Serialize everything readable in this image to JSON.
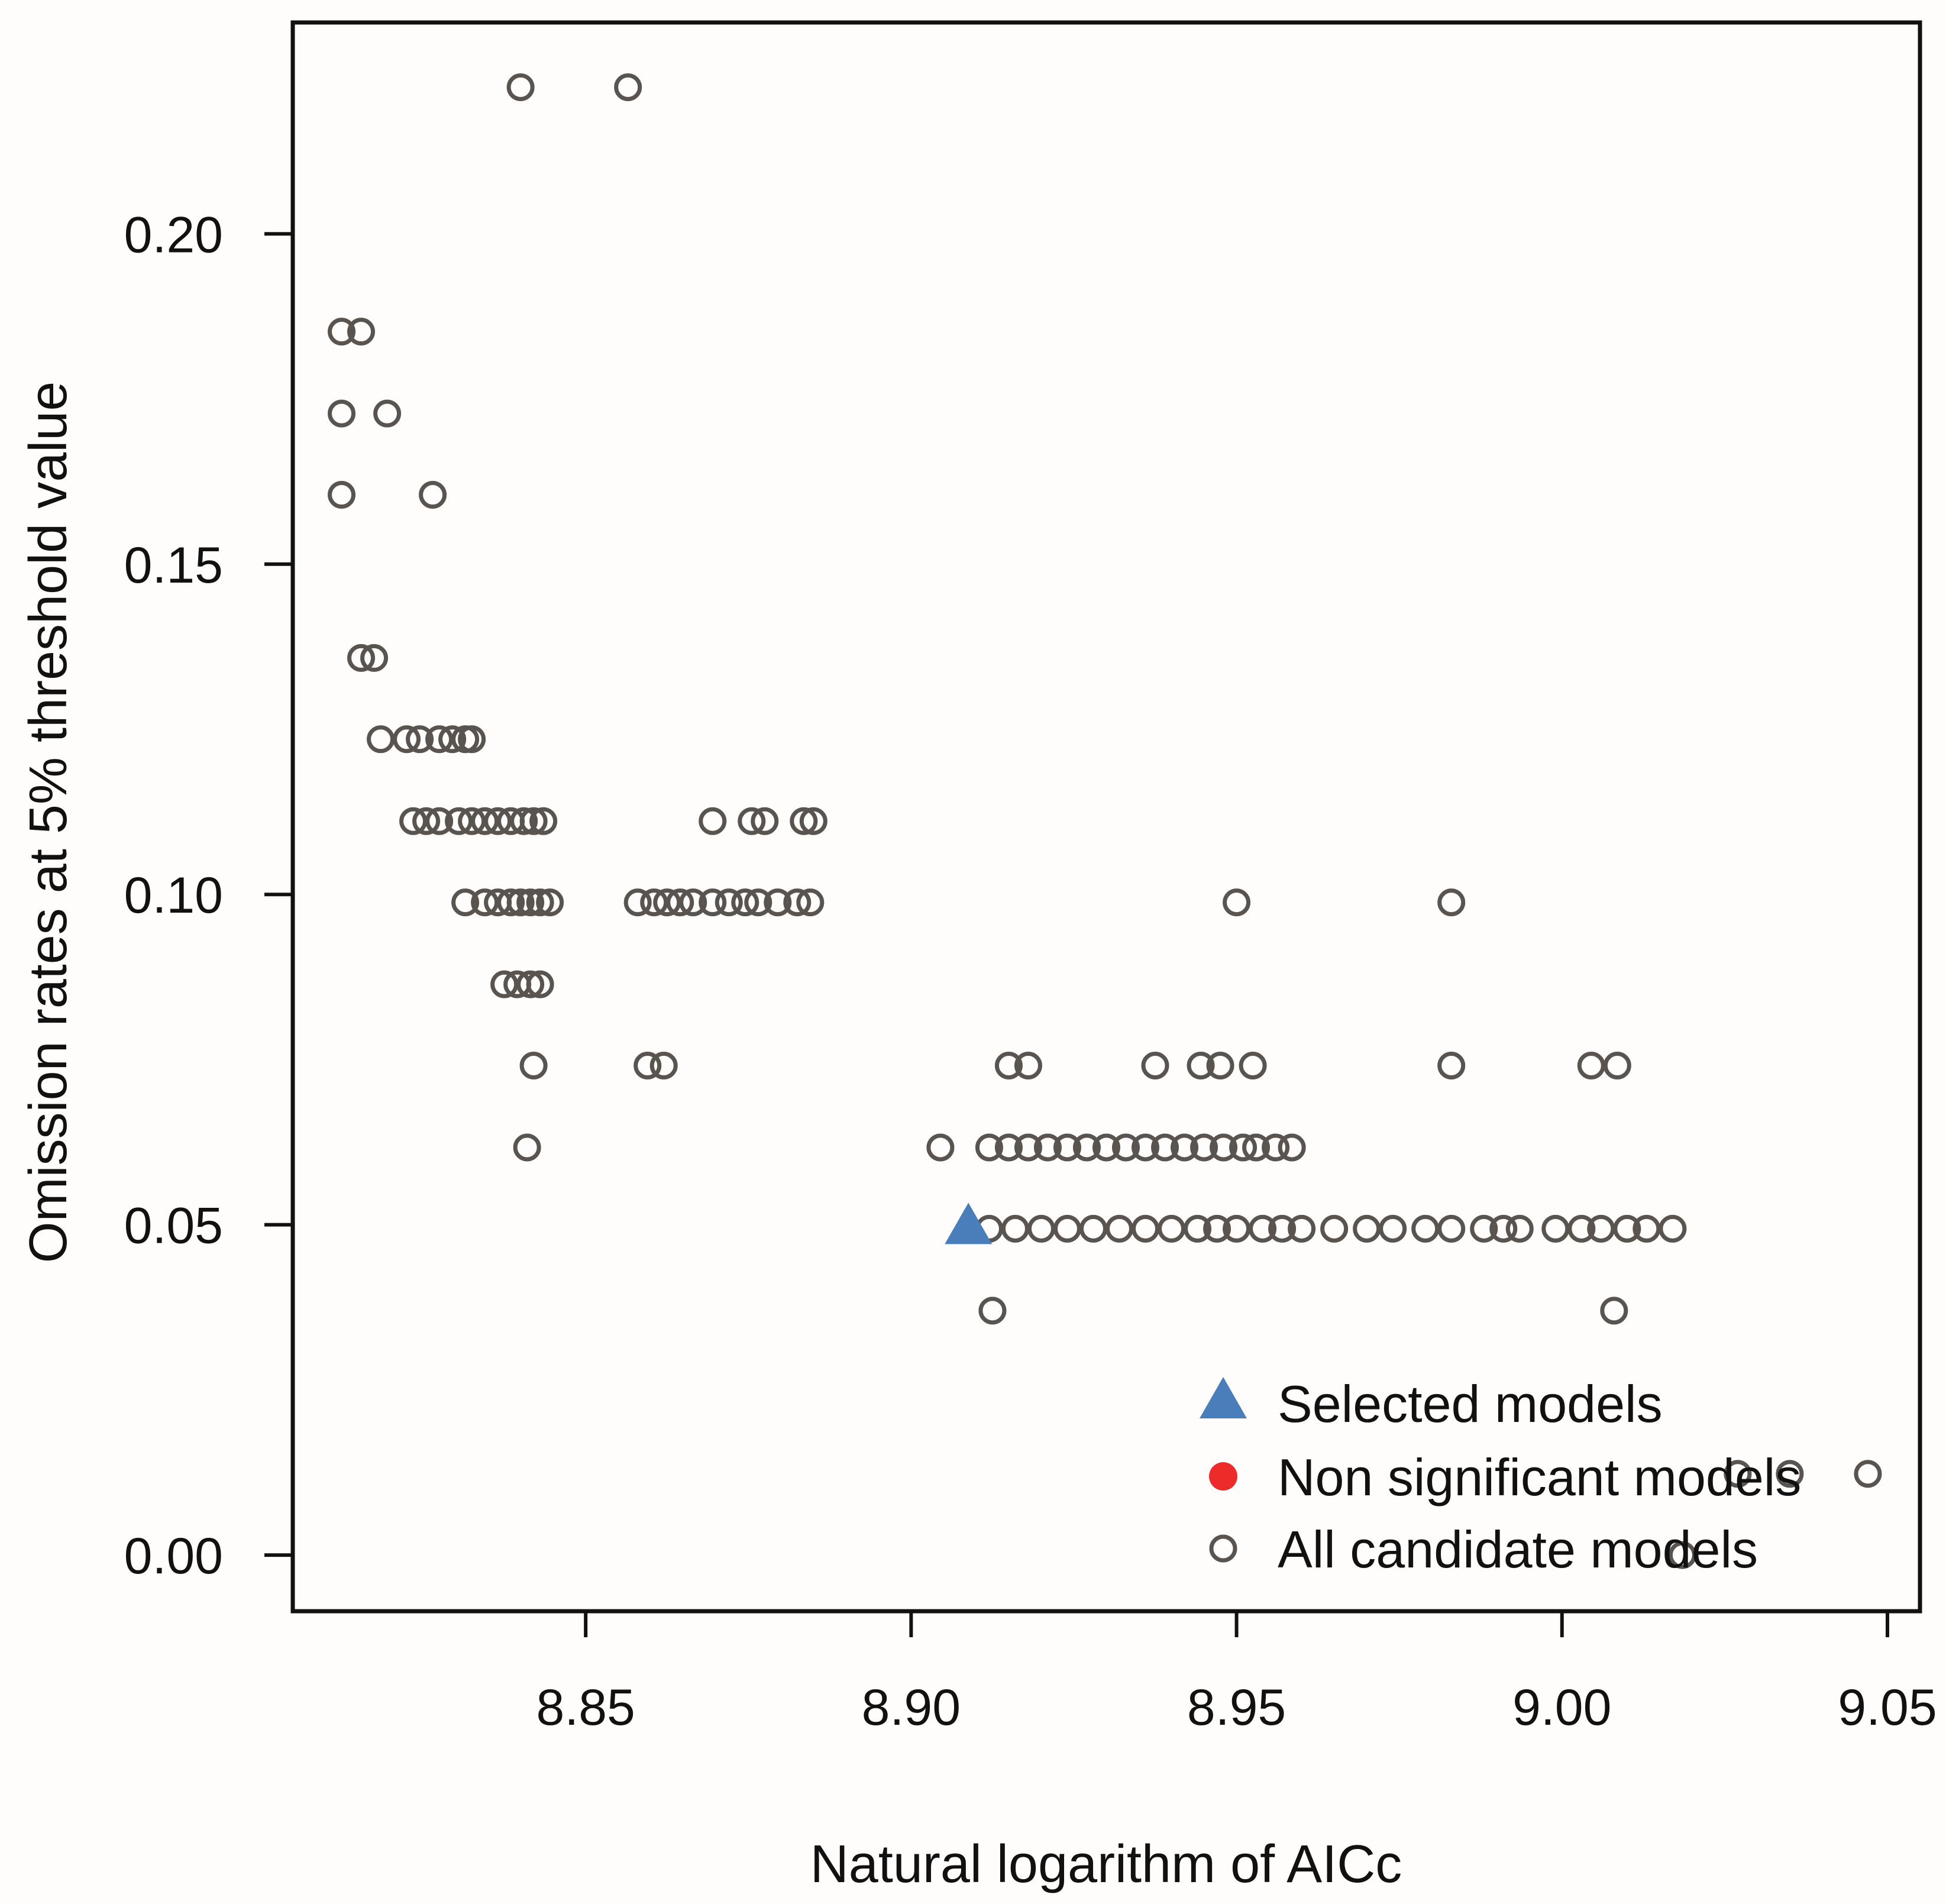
{
  "chart_data": {
    "type": "scatter",
    "xlabel": "Natural logarithm of AICc",
    "ylabel": "Omission rates at 5% threshold value",
    "xlim": [
      8.805,
      9.055
    ],
    "ylim": [
      -0.0085,
      0.232
    ],
    "x_ticks": [
      8.85,
      8.9,
      8.95,
      9.0,
      9.05
    ],
    "x_tick_labels": [
      "8.85",
      "8.90",
      "8.95",
      "9.00",
      "9.05"
    ],
    "y_ticks": [
      0.0,
      0.05,
      0.1,
      0.15,
      0.2
    ],
    "y_tick_labels": [
      "0.00",
      "0.05",
      "0.10",
      "0.15",
      "0.20"
    ],
    "legend": {
      "position": "bottom-right",
      "entries": [
        {
          "label": "Selected models",
          "marker": "triangle-icon",
          "color": "#4a7ebb"
        },
        {
          "label": "Non significant models",
          "marker": "filled-circle-icon",
          "color": "#ee2b2b"
        },
        {
          "label": "All candidate models",
          "marker": "open-circle-icon",
          "color": "#595450"
        }
      ]
    },
    "series": [
      {
        "name": "All candidate models",
        "color": "#595450",
        "points": [
          [
            8.84,
            0.2222
          ],
          [
            8.8565,
            0.2222
          ],
          [
            8.8125,
            0.1852
          ],
          [
            8.8155,
            0.1852
          ],
          [
            8.8125,
            0.1728
          ],
          [
            8.8195,
            0.1728
          ],
          [
            8.8125,
            0.1605
          ],
          [
            8.8265,
            0.1605
          ],
          [
            8.8155,
            0.1358
          ],
          [
            8.8175,
            0.1358
          ],
          [
            8.8185,
            0.1235
          ],
          [
            8.8225,
            0.1235
          ],
          [
            8.8245,
            0.1235
          ],
          [
            8.8275,
            0.1235
          ],
          [
            8.8295,
            0.1235
          ],
          [
            8.8315,
            0.1235
          ],
          [
            8.8325,
            0.1235
          ],
          [
            8.8235,
            0.1111
          ],
          [
            8.8255,
            0.1111
          ],
          [
            8.8275,
            0.1111
          ],
          [
            8.8305,
            0.1111
          ],
          [
            8.8325,
            0.1111
          ],
          [
            8.8345,
            0.1111
          ],
          [
            8.8365,
            0.1111
          ],
          [
            8.8385,
            0.1111
          ],
          [
            8.8405,
            0.1111
          ],
          [
            8.842,
            0.1111
          ],
          [
            8.8435,
            0.1111
          ],
          [
            8.8315,
            0.0988
          ],
          [
            8.8345,
            0.0988
          ],
          [
            8.8365,
            0.0988
          ],
          [
            8.8385,
            0.0988
          ],
          [
            8.84,
            0.0988
          ],
          [
            8.8415,
            0.0988
          ],
          [
            8.843,
            0.0988
          ],
          [
            8.8445,
            0.0988
          ],
          [
            8.8375,
            0.0864
          ],
          [
            8.8395,
            0.0864
          ],
          [
            8.8415,
            0.0864
          ],
          [
            8.843,
            0.0864
          ],
          [
            8.842,
            0.0741
          ],
          [
            8.841,
            0.0617
          ],
          [
            8.8695,
            0.1111
          ],
          [
            8.8755,
            0.1111
          ],
          [
            8.8775,
            0.1111
          ],
          [
            8.8835,
            0.1111
          ],
          [
            8.885,
            0.1111
          ],
          [
            8.858,
            0.0988
          ],
          [
            8.8605,
            0.0988
          ],
          [
            8.8625,
            0.0988
          ],
          [
            8.8645,
            0.0988
          ],
          [
            8.8665,
            0.0988
          ],
          [
            8.8695,
            0.0988
          ],
          [
            8.872,
            0.0988
          ],
          [
            8.8745,
            0.0988
          ],
          [
            8.8765,
            0.0988
          ],
          [
            8.8795,
            0.0988
          ],
          [
            8.8825,
            0.0988
          ],
          [
            8.8845,
            0.0988
          ],
          [
            8.8595,
            0.0741
          ],
          [
            8.862,
            0.0741
          ],
          [
            8.9045,
            0.0617
          ],
          [
            8.912,
            0.0617
          ],
          [
            8.915,
            0.0617
          ],
          [
            8.918,
            0.0617
          ],
          [
            8.921,
            0.0617
          ],
          [
            8.924,
            0.0617
          ],
          [
            8.927,
            0.0617
          ],
          [
            8.93,
            0.0617
          ],
          [
            8.933,
            0.0617
          ],
          [
            8.936,
            0.0617
          ],
          [
            8.939,
            0.0617
          ],
          [
            8.942,
            0.0617
          ],
          [
            8.945,
            0.0617
          ],
          [
            8.948,
            0.0617
          ],
          [
            8.951,
            0.0617
          ],
          [
            8.953,
            0.0617
          ],
          [
            8.956,
            0.0617
          ],
          [
            8.9585,
            0.0617
          ],
          [
            8.912,
            0.0494
          ],
          [
            8.916,
            0.0494
          ],
          [
            8.92,
            0.0494
          ],
          [
            8.924,
            0.0494
          ],
          [
            8.928,
            0.0494
          ],
          [
            8.932,
            0.0494
          ],
          [
            8.936,
            0.0494
          ],
          [
            8.94,
            0.0494
          ],
          [
            8.944,
            0.0494
          ],
          [
            8.947,
            0.0494
          ],
          [
            8.95,
            0.0494
          ],
          [
            8.954,
            0.0494
          ],
          [
            8.957,
            0.0494
          ],
          [
            8.96,
            0.0494
          ],
          [
            8.965,
            0.0494
          ],
          [
            8.97,
            0.0494
          ],
          [
            8.974,
            0.0494
          ],
          [
            8.979,
            0.0494
          ],
          [
            8.983,
            0.0494
          ],
          [
            8.988,
            0.0494
          ],
          [
            8.991,
            0.0494
          ],
          [
            8.9935,
            0.0494
          ],
          [
            8.999,
            0.0494
          ],
          [
            9.003,
            0.0494
          ],
          [
            9.006,
            0.0494
          ],
          [
            9.01,
            0.0494
          ],
          [
            9.013,
            0.0494
          ],
          [
            9.017,
            0.0494
          ],
          [
            8.915,
            0.0741
          ],
          [
            8.918,
            0.0741
          ],
          [
            8.9375,
            0.0741
          ],
          [
            8.9445,
            0.0741
          ],
          [
            8.9475,
            0.0741
          ],
          [
            8.9525,
            0.0741
          ],
          [
            8.983,
            0.0741
          ],
          [
            9.0045,
            0.0741
          ],
          [
            9.0085,
            0.0741
          ],
          [
            8.95,
            0.0988
          ],
          [
            8.983,
            0.0988
          ],
          [
            8.9125,
            0.037
          ],
          [
            9.008,
            0.037
          ],
          [
            9.0185,
            0.0
          ],
          [
            9.027,
            0.0123
          ],
          [
            9.035,
            0.0123
          ],
          [
            9.047,
            0.0123
          ]
        ]
      },
      {
        "name": "Selected models",
        "color": "#4a7ebb",
        "points": [
          [
            8.9088,
            0.0494
          ]
        ]
      },
      {
        "name": "Non significant models",
        "color": "#ee2b2b",
        "points": []
      }
    ]
  }
}
